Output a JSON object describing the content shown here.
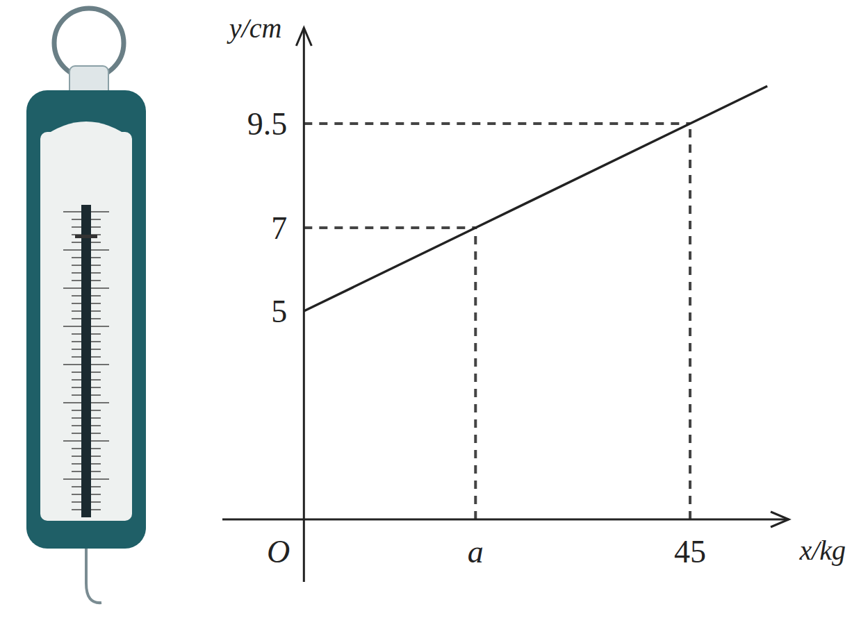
{
  "chart_data": {
    "type": "line",
    "x_label": "x/kg",
    "y_label": "y/cm",
    "x": [
      0,
      20,
      45,
      54
    ],
    "series": [
      {
        "color": "#222222",
        "line_style": "solid",
        "values": [
          5,
          7,
          9.5,
          10.4
        ]
      }
    ],
    "xlim": [
      -9.5,
      56.5
    ],
    "ylim": [
      -1.5,
      11.8
    ],
    "xticks": [
      {
        "value": 0,
        "label": "O"
      },
      {
        "value": 20,
        "label": "a"
      },
      45
    ],
    "yticks": [
      5,
      7,
      9.5
    ],
    "grid": true
  }
}
